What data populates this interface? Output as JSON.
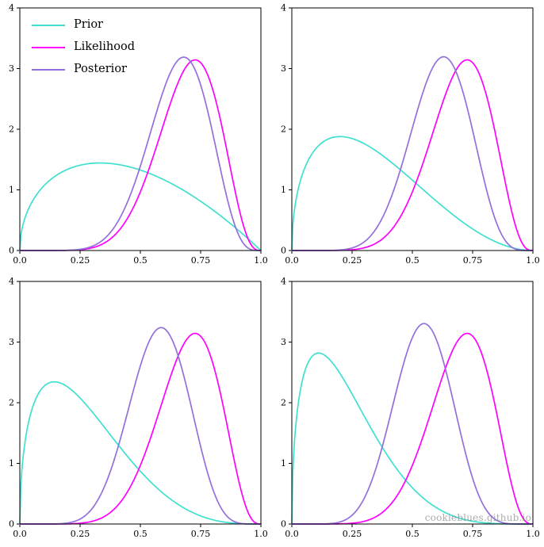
{
  "figure": {
    "watermark": "cookieblues.github.io",
    "background_color": "#ffffff",
    "axis_color": "#000000",
    "legend": {
      "position": "upper left",
      "subplot": "top-left",
      "entries": [
        {
          "label": "Prior",
          "color": "#40E0D0"
        },
        {
          "label": "Likelihood",
          "color": "#FF00FF"
        },
        {
          "label": "Posterior",
          "color": "#9370DB"
        }
      ]
    }
  },
  "chart_data": [
    {
      "type": "line",
      "position": "top-left",
      "xlim": [
        0,
        1
      ],
      "ylim": [
        0,
        4
      ],
      "grid": false,
      "x_ticks": [
        {
          "value": 0,
          "label": "0.0"
        },
        {
          "value": 0.25,
          "label": "0.25"
        },
        {
          "value": 0.5,
          "label": "0.5"
        },
        {
          "value": 0.75,
          "label": "0.75"
        },
        {
          "value": 1,
          "label": "1.0"
        }
      ],
      "y_ticks": [
        {
          "value": 0,
          "label": "0"
        },
        {
          "value": 1,
          "label": "1"
        },
        {
          "value": 2,
          "label": "2"
        },
        {
          "value": 3,
          "label": "3"
        },
        {
          "value": 4,
          "label": "4"
        }
      ],
      "series": [
        {
          "name": "Prior",
          "color": "#40E0D0",
          "distribution": "beta",
          "alpha": 1.5,
          "beta": 2.0,
          "peak_x": 0.33,
          "peak_y": 1.44
        },
        {
          "name": "Likelihood",
          "color": "#FF00FF",
          "distribution": "beta",
          "alpha": 9.0,
          "beta": 4.0,
          "peak_x": 0.73,
          "peak_y": 3.14
        },
        {
          "name": "Posterior",
          "color": "#9370DB",
          "distribution": "beta",
          "alpha": 9.5,
          "beta": 5.0,
          "peak_x": 0.68,
          "peak_y": 3.2
        }
      ]
    },
    {
      "type": "line",
      "position": "top-right",
      "xlim": [
        0,
        1
      ],
      "ylim": [
        0,
        4
      ],
      "grid": false,
      "x_ticks": [
        {
          "value": 0,
          "label": "0.0"
        },
        {
          "value": 0.25,
          "label": "0.25"
        },
        {
          "value": 0.5,
          "label": "0.5"
        },
        {
          "value": 0.75,
          "label": "0.75"
        },
        {
          "value": 1,
          "label": "1.0"
        }
      ],
      "y_ticks": [
        {
          "value": 0,
          "label": "0"
        },
        {
          "value": 1,
          "label": "1"
        },
        {
          "value": 2,
          "label": "2"
        },
        {
          "value": 3,
          "label": "3"
        },
        {
          "value": 4,
          "label": "4"
        }
      ],
      "series": [
        {
          "name": "Prior",
          "color": "#40E0D0",
          "distribution": "beta",
          "alpha": 1.5,
          "beta": 3.0,
          "peak_x": 0.2,
          "peak_y": 1.88
        },
        {
          "name": "Likelihood",
          "color": "#FF00FF",
          "distribution": "beta",
          "alpha": 9.0,
          "beta": 4.0,
          "peak_x": 0.73,
          "peak_y": 3.14
        },
        {
          "name": "Posterior",
          "color": "#9370DB",
          "distribution": "beta",
          "alpha": 9.5,
          "beta": 6.0,
          "peak_x": 0.63,
          "peak_y": 3.2
        }
      ]
    },
    {
      "type": "line",
      "position": "bottom-left",
      "xlim": [
        0,
        1
      ],
      "ylim": [
        0,
        4
      ],
      "grid": false,
      "x_ticks": [
        {
          "value": 0,
          "label": "0.0"
        },
        {
          "value": 0.25,
          "label": "0.25"
        },
        {
          "value": 0.5,
          "label": "0.5"
        },
        {
          "value": 0.75,
          "label": "0.75"
        },
        {
          "value": 1,
          "label": "1.0"
        }
      ],
      "y_ticks": [
        {
          "value": 0,
          "label": "0"
        },
        {
          "value": 1,
          "label": "1"
        },
        {
          "value": 2,
          "label": "2"
        },
        {
          "value": 3,
          "label": "3"
        },
        {
          "value": 4,
          "label": "4"
        }
      ],
      "series": [
        {
          "name": "Prior",
          "color": "#40E0D0",
          "distribution": "beta",
          "alpha": 1.5,
          "beta": 4.0,
          "peak_x": 0.14,
          "peak_y": 2.34
        },
        {
          "name": "Likelihood",
          "color": "#FF00FF",
          "distribution": "beta",
          "alpha": 9.0,
          "beta": 4.0,
          "peak_x": 0.73,
          "peak_y": 3.14
        },
        {
          "name": "Posterior",
          "color": "#9370DB",
          "distribution": "beta",
          "alpha": 9.5,
          "beta": 7.0,
          "peak_x": 0.59,
          "peak_y": 3.25
        }
      ]
    },
    {
      "type": "line",
      "position": "bottom-right",
      "xlim": [
        0,
        1
      ],
      "ylim": [
        0,
        4
      ],
      "grid": false,
      "x_ticks": [
        {
          "value": 0,
          "label": "0.0"
        },
        {
          "value": 0.25,
          "label": "0.25"
        },
        {
          "value": 0.5,
          "label": "0.5"
        },
        {
          "value": 0.75,
          "label": "0.75"
        },
        {
          "value": 1,
          "label": "1.0"
        }
      ],
      "y_ticks": [
        {
          "value": 0,
          "label": "0"
        },
        {
          "value": 1,
          "label": "1"
        },
        {
          "value": 2,
          "label": "2"
        },
        {
          "value": 3,
          "label": "3"
        },
        {
          "value": 4,
          "label": "4"
        }
      ],
      "series": [
        {
          "name": "Prior",
          "color": "#40E0D0",
          "distribution": "beta",
          "alpha": 1.5,
          "beta": 5.0,
          "peak_x": 0.11,
          "peak_y": 2.82
        },
        {
          "name": "Likelihood",
          "color": "#FF00FF",
          "distribution": "beta",
          "alpha": 9.0,
          "beta": 4.0,
          "peak_x": 0.73,
          "peak_y": 3.14
        },
        {
          "name": "Posterior",
          "color": "#9370DB",
          "distribution": "beta",
          "alpha": 9.5,
          "beta": 8.0,
          "peak_x": 0.55,
          "peak_y": 3.3
        }
      ]
    }
  ]
}
